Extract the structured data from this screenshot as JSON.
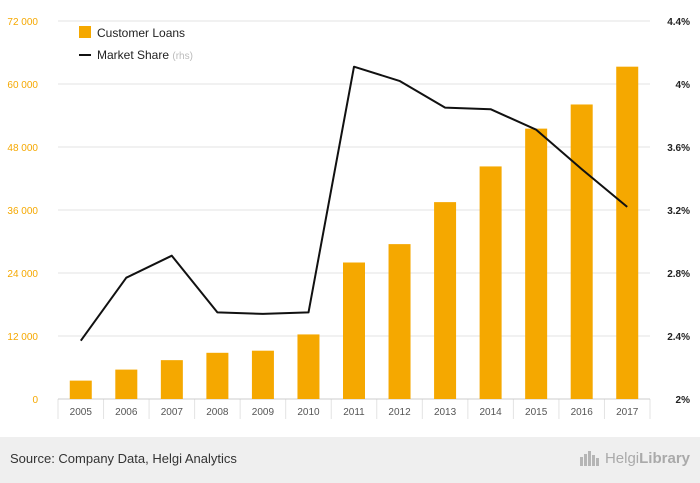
{
  "colors": {
    "bar": "#f5a800",
    "line": "#111111",
    "left_axis_text": "#f5a800",
    "right_axis_text": "#222222",
    "x_axis_text": "#555555",
    "grid": "#e3e3e3",
    "footer_bg": "#efefef"
  },
  "chart_data": {
    "type": "bar",
    "categories": [
      "2005",
      "2006",
      "2007",
      "2008",
      "2009",
      "2010",
      "2011",
      "2012",
      "2013",
      "2014",
      "2015",
      "2016",
      "2017"
    ],
    "series": [
      {
        "name": "Customer Loans",
        "type": "bar",
        "axis": "left",
        "values": [
          3500,
          5600,
          7400,
          8800,
          9200,
          12300,
          26000,
          29500,
          37500,
          44300,
          51500,
          56100,
          63300
        ]
      },
      {
        "name": "Market Share",
        "name_suffix": "(rhs)",
        "type": "line",
        "axis": "right",
        "values": [
          2.37,
          2.77,
          2.91,
          2.55,
          2.54,
          2.55,
          4.11,
          4.02,
          3.85,
          3.84,
          3.71,
          3.46,
          3.22
        ]
      }
    ],
    "left_axis": {
      "ylim": [
        0,
        72000
      ],
      "ticks": [
        0,
        12000,
        24000,
        36000,
        48000,
        60000,
        72000
      ],
      "tick_labels": [
        "0",
        "12 000",
        "24 000",
        "36 000",
        "48 000",
        "60 000",
        "72 000"
      ]
    },
    "right_axis": {
      "ylim": [
        2.0,
        4.4
      ],
      "ticks": [
        2.0,
        2.4,
        2.8,
        3.2,
        3.6,
        4.0,
        4.4
      ],
      "tick_labels": [
        "2%",
        "2.4%",
        "2.8%",
        "3.2%",
        "3.6%",
        "4%",
        "4.4%"
      ]
    },
    "grid": true,
    "legend_placement": "top-left"
  },
  "footer": {
    "source": "Source: Company Data, Helgi Analytics",
    "brand_part1": "Helgi",
    "brand_part2": "Library",
    "brand_icon": "helgi-library-logo-icon"
  }
}
